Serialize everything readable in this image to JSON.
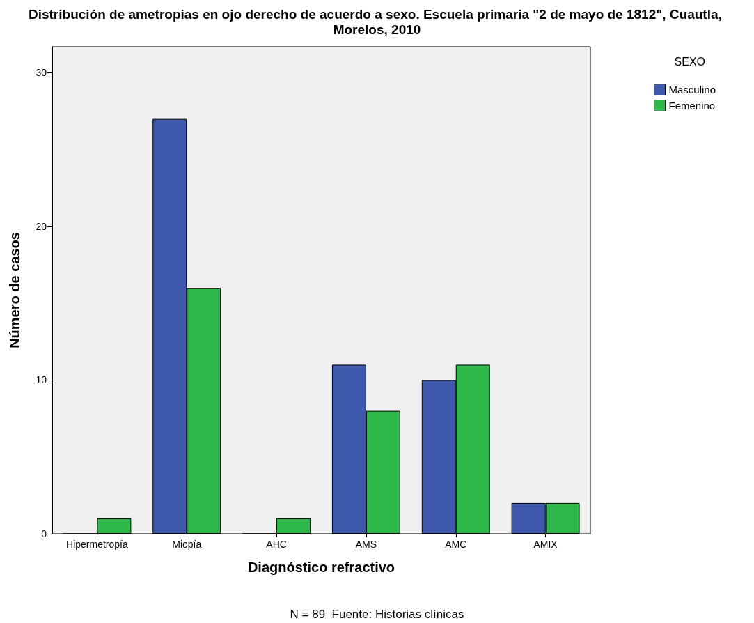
{
  "chart_data": {
    "type": "bar",
    "title": "Distribución de ametropias en ojo derecho de acuerdo a sexo. Escuela primaria \"2 de mayo de 1812\", Cuautla, Morelos, 2010",
    "xlabel": "Diagnóstico refractivo",
    "ylabel": "Número de casos",
    "legend_title": "SEXO",
    "annotations": [
      "N = 89  Fuente: Historias clínicas"
    ],
    "categories": [
      "Hipermetropía",
      "Miopía",
      "AHC",
      "AMS",
      "AMC",
      "AMIX"
    ],
    "series": [
      {
        "name": "Masculino",
        "color": "#3e58ac",
        "values": [
          0,
          27,
          0,
          11,
          10,
          2
        ]
      },
      {
        "name": "Femenino",
        "color": "#2eb84a",
        "values": [
          1,
          16,
          1,
          8,
          11,
          2
        ]
      }
    ],
    "ylim": [
      0,
      31.7
    ],
    "yticks": [
      0,
      10,
      20,
      30
    ],
    "grid": false,
    "legend": "top right"
  }
}
